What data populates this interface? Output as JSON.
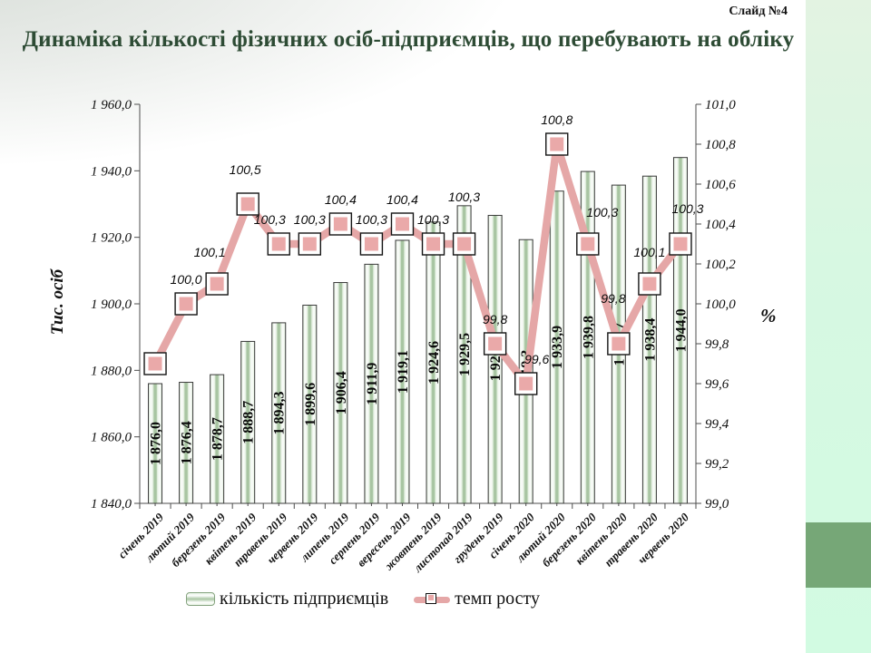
{
  "slide": {
    "number_label": "Слайд №4",
    "title": "Динаміка кількості фізичних осіб-підприємців, що перебувають на обліку"
  },
  "chart_data": {
    "type": "bar+line combo",
    "categories": [
      "січень 2019",
      "лютий 2019",
      "березень 2019",
      "квітень 2019",
      "травень 2019",
      "червень 2019",
      "липень 2019",
      "серпень 2019",
      "вересень 2019",
      "жовтень 2019",
      "листопад 2019",
      "грудень 2019",
      "січень 2020",
      "лютий 2020",
      "березень 2020",
      "квітень 2020",
      "травень 2020",
      "червень 2020"
    ],
    "series": [
      {
        "name": "кількість підприємців",
        "type": "bar",
        "axis": "left",
        "values": [
          1876.0,
          1876.4,
          1878.7,
          1888.7,
          1894.3,
          1899.6,
          1906.4,
          1911.9,
          1919.1,
          1924.6,
          1929.5,
          1926.6,
          1919.3,
          1933.9,
          1939.8,
          1935.7,
          1938.4,
          1944.0
        ],
        "labels": [
          "1 876,0",
          "1 876,4",
          "1 878,7",
          "1 888,7",
          "1 894,3",
          "1 899,6",
          "1 906,4",
          "1 911,9",
          "1 919,1",
          "1 924,6",
          "1 929,5",
          "1 926,6",
          "1 919,3",
          "1 933,9",
          "1 939,8",
          "1 935,7",
          "1 938,4",
          "1 944,0"
        ]
      },
      {
        "name": "темп росту",
        "type": "line",
        "axis": "right",
        "values": [
          99.7,
          100.0,
          100.1,
          100.5,
          100.3,
          100.3,
          100.4,
          100.3,
          100.4,
          100.3,
          100.3,
          99.8,
          99.6,
          100.8,
          100.3,
          99.8,
          100.1,
          100.3
        ],
        "labels": [
          null,
          "100,0",
          "100,1",
          "100,5",
          "100,3",
          "100,3",
          "100,4",
          "100,3",
          "100,4",
          "100,3",
          "100,3",
          "99,8",
          "99,6",
          "100,8",
          "100,3",
          "99,8",
          "100,1",
          "100,3"
        ]
      }
    ],
    "left_axis": {
      "title": "Тис. осіб",
      "min": 1840,
      "max": 1960,
      "step": 20,
      "tick_labels": [
        "1 840,0",
        "1 860,0",
        "1 880,0",
        "1 900,0",
        "1 920,0",
        "1 940,0",
        "1 960,0"
      ]
    },
    "right_axis": {
      "title": "%",
      "min": 99.0,
      "max": 101.0,
      "step": 0.2,
      "tick_labels": [
        "99,0",
        "99,2",
        "99,4",
        "99,6",
        "99,8",
        "100,0",
        "100,2",
        "100,4",
        "100,6",
        "100,8",
        "101,0"
      ]
    },
    "legend": {
      "bar_label": "кількість підприємців",
      "line_label": "темп росту",
      "position": "bottom"
    },
    "grid": "off",
    "colors": {
      "title_text": "#2d4b34",
      "bar_stripe": "#a8c5a2",
      "bar_edge_tint": "#cfe2ca",
      "bar_border": "#3b3b3b",
      "line": "#e5a7a7",
      "marker_fill": "#eaa9a9",
      "marker_border": "#151515",
      "side_band": "#d5f8e2",
      "side_square": "#76a777"
    }
  }
}
